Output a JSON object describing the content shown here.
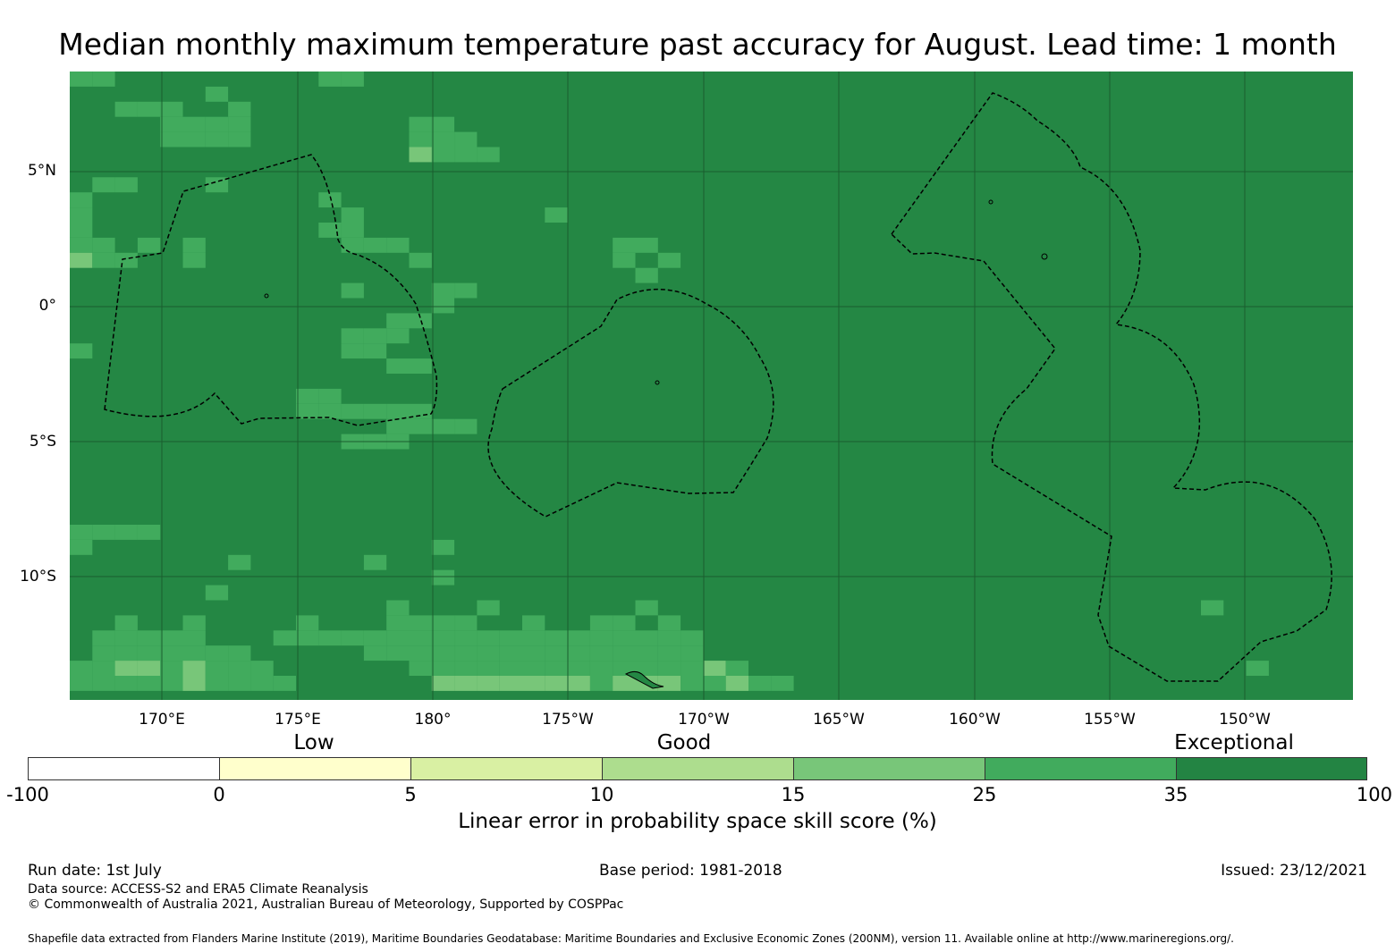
{
  "title": "Median monthly maximum temperature past accuracy for August. Lead time: 1 month",
  "map": {
    "lat_labels": [
      "5°N",
      "0°",
      "5°S",
      "10°S"
    ],
    "lon_labels": [
      "170°E",
      "175°E",
      "180°",
      "175°W",
      "170°W",
      "165°W",
      "160°W",
      "155°W",
      "150°W"
    ],
    "background_color": "#248744",
    "grid_color": "#1a5c2e",
    "boundary_color": "#000000"
  },
  "colorbar": {
    "categories": [
      "Low",
      "Good",
      "Exceptional"
    ],
    "ticks": [
      "-100",
      "0",
      "5",
      "10",
      "15",
      "25",
      "35",
      "100"
    ],
    "colors": [
      "#ffffff",
      "#ffffcc",
      "#d9f0a3",
      "#addd8e",
      "#78c679",
      "#41ab5d",
      "#238443"
    ],
    "label": "Linear error in probability space skill score (%)"
  },
  "footer": {
    "run_date": "Run date: 1st July",
    "base_period": "Base period: 1981-2018",
    "issued": "Issued: 23/12/2021",
    "data_source": "Data source: ACCESS-S2 and ERA5 Climate Reanalysis",
    "copyright": "© Commonwealth of Australia 2021, Australian Bureau of Meteorology, Supported by COSPPac",
    "shapefile": "Shapefile data extracted from Flanders Marine Institute (2019), Maritime Boundaries Geodatabase: Maritime Boundaries and Exclusive Economic Zones (200NM), version 11. Available online at http://www.marineregions.org/."
  }
}
